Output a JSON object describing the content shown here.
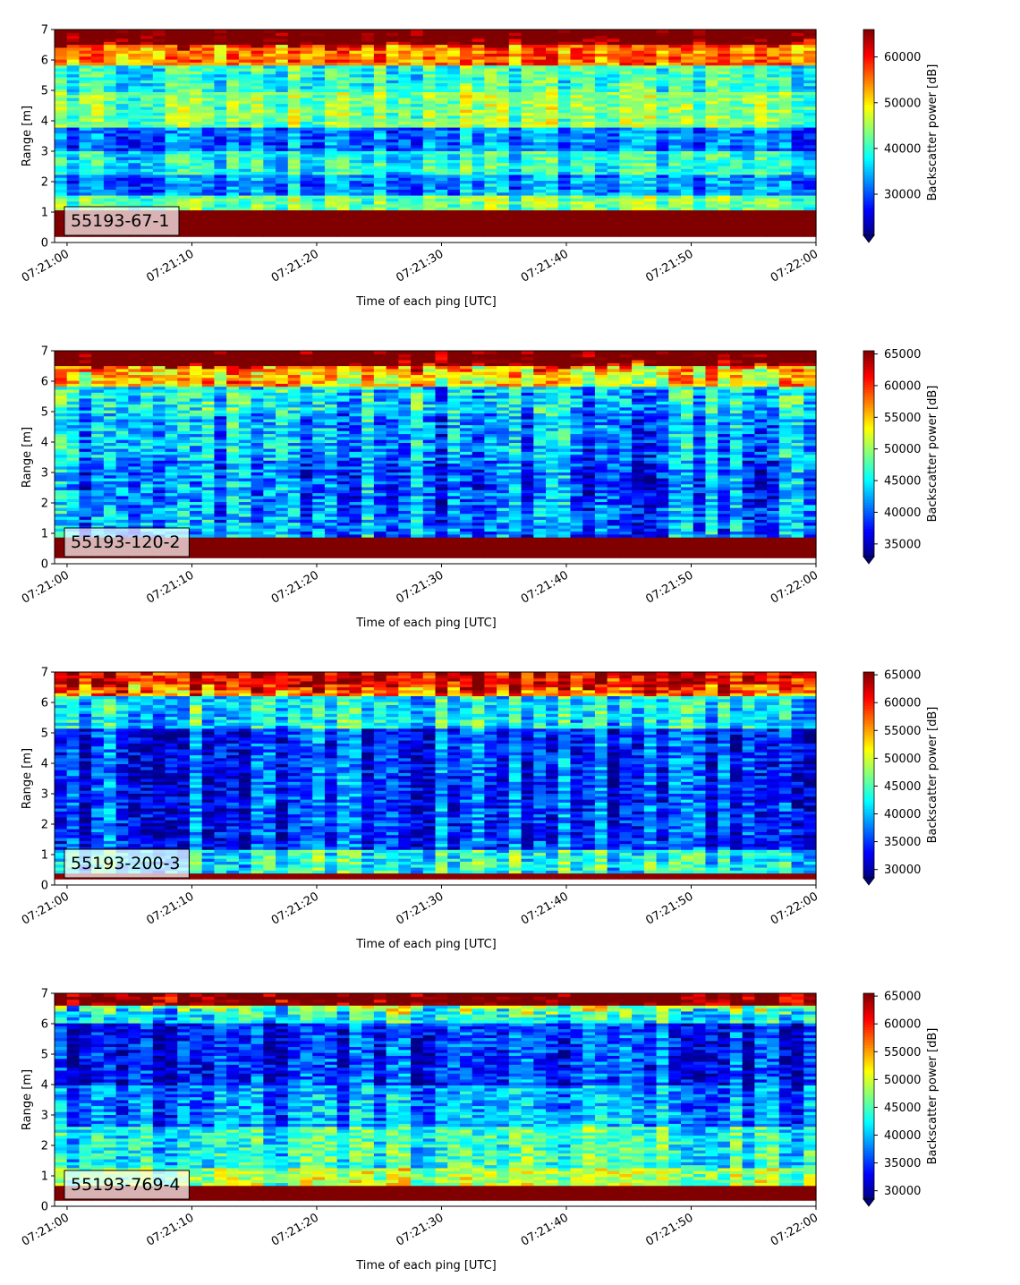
{
  "chart_data": [
    {
      "type": "heatmap",
      "panel_label": "55193-67-1",
      "xlabel": "Time of each ping [UTC]",
      "ylabel": "Range [m]",
      "x_ticks": [
        "07:21:00",
        "07:21:10",
        "07:21:20",
        "07:21:30",
        "07:21:40",
        "07:21:50",
        "07:22:00"
      ],
      "y_ticks": [
        "0",
        "1",
        "2",
        "3",
        "4",
        "5",
        "6",
        "7"
      ],
      "xlim": [
        "07:20:59",
        "07:22:00"
      ],
      "ylim": [
        0,
        7
      ],
      "colorbar": {
        "label": "Backscatter power [dB]",
        "colormap": "jet",
        "range": [
          21000,
          66000
        ],
        "ticks": [
          "30000",
          "40000",
          "50000",
          "60000"
        ],
        "extend": "min"
      },
      "bands": [
        {
          "range_m": [
            0.2,
            1.1
          ],
          "level": 66000
        },
        {
          "range_m": [
            1.1,
            1.6
          ],
          "level": 43000
        },
        {
          "range_m": [
            1.6,
            2.2
          ],
          "level": 33000
        },
        {
          "range_m": [
            2.2,
            3.0
          ],
          "level": 39000
        },
        {
          "range_m": [
            3.0,
            3.8
          ],
          "level": 32000
        },
        {
          "range_m": [
            3.8,
            5.0
          ],
          "level": 44000
        },
        {
          "range_m": [
            5.0,
            5.8
          ],
          "level": 40000
        },
        {
          "range_m": [
            5.8,
            6.5
          ],
          "level": 55000
        },
        {
          "range_m": [
            6.5,
            7.0
          ],
          "level": 64000
        }
      ]
    },
    {
      "type": "heatmap",
      "panel_label": "55193-120-2",
      "xlabel": "Time of each ping [UTC]",
      "ylabel": "Range [m]",
      "x_ticks": [
        "07:21:00",
        "07:21:10",
        "07:21:20",
        "07:21:30",
        "07:21:40",
        "07:21:50",
        "07:22:00"
      ],
      "y_ticks": [
        "0",
        "1",
        "2",
        "3",
        "4",
        "5",
        "6",
        "7"
      ],
      "xlim": [
        "07:20:59",
        "07:22:00"
      ],
      "ylim": [
        0,
        7
      ],
      "colorbar": {
        "label": "Backscatter power [dB]",
        "colormap": "jet",
        "range": [
          33000,
          65500
        ],
        "ticks": [
          "35000",
          "40000",
          "45000",
          "50000",
          "55000",
          "60000",
          "65000"
        ],
        "extend": "min"
      },
      "bands": [
        {
          "range_m": [
            0.2,
            0.85
          ],
          "level": 65500
        },
        {
          "range_m": [
            0.85,
            2.0
          ],
          "level": 41000
        },
        {
          "range_m": [
            2.0,
            3.4
          ],
          "level": 40000
        },
        {
          "range_m": [
            3.4,
            5.0
          ],
          "level": 42000
        },
        {
          "range_m": [
            5.0,
            5.8
          ],
          "level": 44000
        },
        {
          "range_m": [
            5.8,
            6.5
          ],
          "level": 54000
        },
        {
          "range_m": [
            6.5,
            7.0
          ],
          "level": 63000
        }
      ]
    },
    {
      "type": "heatmap",
      "panel_label": "55193-200-3",
      "xlabel": "Time of each ping [UTC]",
      "ylabel": "Range [m]",
      "x_ticks": [
        "07:21:00",
        "07:21:10",
        "07:21:20",
        "07:21:30",
        "07:21:40",
        "07:21:50",
        "07:22:00"
      ],
      "y_ticks": [
        "0",
        "1",
        "2",
        "3",
        "4",
        "5",
        "6",
        "7"
      ],
      "xlim": [
        "07:20:59",
        "07:22:00"
      ],
      "ylim": [
        0,
        7
      ],
      "colorbar": {
        "label": "Backscatter power [dB]",
        "colormap": "jet",
        "range": [
          28500,
          65500
        ],
        "ticks": [
          "30000",
          "35000",
          "40000",
          "45000",
          "50000",
          "55000",
          "60000",
          "65000"
        ],
        "extend": "min"
      },
      "bands": [
        {
          "range_m": [
            0.2,
            0.35
          ],
          "level": 65000
        },
        {
          "range_m": [
            0.35,
            1.2
          ],
          "level": 43000
        },
        {
          "range_m": [
            1.2,
            5.2
          ],
          "level": 35000
        },
        {
          "range_m": [
            5.2,
            6.2
          ],
          "level": 42000
        },
        {
          "range_m": [
            6.2,
            7.0
          ],
          "level": 56000
        }
      ]
    },
    {
      "type": "heatmap",
      "panel_label": "55193-769-4",
      "xlabel": "Time of each ping [UTC]",
      "ylabel": "Range [m]",
      "x_ticks": [
        "07:21:00",
        "07:21:10",
        "07:21:20",
        "07:21:30",
        "07:21:40",
        "07:21:50",
        "07:22:00"
      ],
      "y_ticks": [
        "0",
        "1",
        "2",
        "3",
        "4",
        "5",
        "6",
        "7"
      ],
      "xlim": [
        "07:20:59",
        "07:22:00"
      ],
      "ylim": [
        0,
        7
      ],
      "colorbar": {
        "label": "Backscatter power [dB]",
        "colormap": "jet",
        "range": [
          28500,
          65500
        ],
        "ticks": [
          "30000",
          "35000",
          "40000",
          "45000",
          "50000",
          "55000",
          "60000",
          "65000"
        ],
        "extend": "min"
      },
      "bands": [
        {
          "range_m": [
            0.2,
            0.7
          ],
          "level": 65500
        },
        {
          "range_m": [
            0.7,
            1.3
          ],
          "level": 48000
        },
        {
          "range_m": [
            1.3,
            2.6
          ],
          "level": 43000
        },
        {
          "range_m": [
            2.6,
            4.0
          ],
          "level": 38000
        },
        {
          "range_m": [
            4.0,
            6.0
          ],
          "level": 34000
        },
        {
          "range_m": [
            6.0,
            6.6
          ],
          "level": 42000
        },
        {
          "range_m": [
            6.6,
            7.0
          ],
          "level": 60000
        }
      ]
    }
  ]
}
